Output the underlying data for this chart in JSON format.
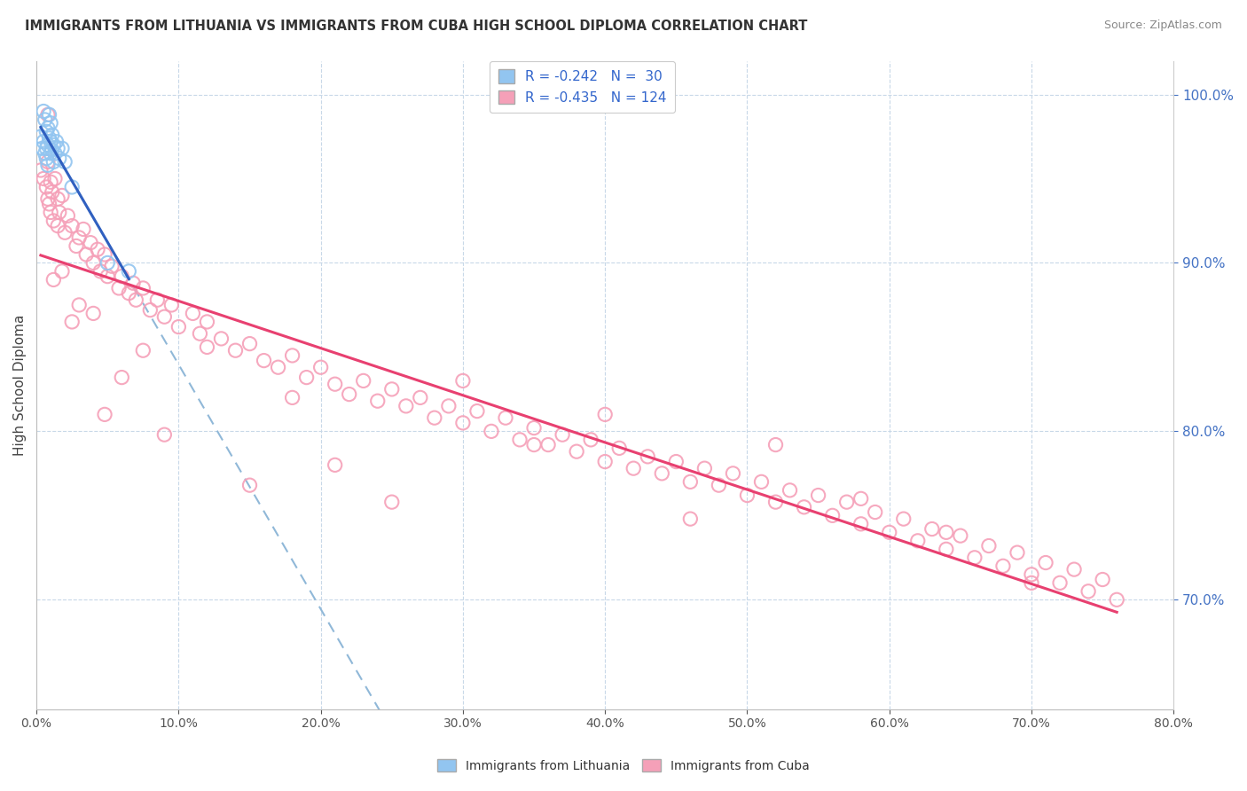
{
  "title": "IMMIGRANTS FROM LITHUANIA VS IMMIGRANTS FROM CUBA HIGH SCHOOL DIPLOMA CORRELATION CHART",
  "source": "Source: ZipAtlas.com",
  "ylabel": "High School Diploma",
  "bottom_legend": [
    "Immigrants from Lithuania",
    "Immigrants from Cuba"
  ],
  "lithuania_color": "#92c5f0",
  "cuba_color": "#f5a0b8",
  "trend_lithuania_color": "#3060c0",
  "trend_cuba_color": "#e84070",
  "trend_dashed_color": "#90b8d8",
  "background_color": "#ffffff",
  "legend_text_color": "#3366cc",
  "xlim": [
    0.0,
    0.8
  ],
  "ylim": [
    0.635,
    1.02
  ],
  "right_yticks": [
    0.7,
    0.8,
    0.9,
    1.0
  ],
  "lithuania_x": [
    0.003,
    0.004,
    0.005,
    0.005,
    0.006,
    0.006,
    0.007,
    0.007,
    0.007,
    0.008,
    0.008,
    0.008,
    0.009,
    0.009,
    0.01,
    0.01,
    0.01,
    0.011,
    0.011,
    0.012,
    0.012,
    0.013,
    0.014,
    0.015,
    0.016,
    0.018,
    0.02,
    0.025,
    0.05,
    0.065
  ],
  "lithuania_y": [
    0.975,
    0.968,
    0.99,
    0.972,
    0.965,
    0.985,
    0.968,
    0.978,
    0.962,
    0.98,
    0.97,
    0.958,
    0.974,
    0.988,
    0.965,
    0.972,
    0.983,
    0.967,
    0.976,
    0.96,
    0.97,
    0.965,
    0.972,
    0.968,
    0.962,
    0.968,
    0.96,
    0.945,
    0.9,
    0.895
  ],
  "cuba_x": [
    0.003,
    0.005,
    0.007,
    0.008,
    0.008,
    0.009,
    0.01,
    0.01,
    0.011,
    0.012,
    0.013,
    0.015,
    0.015,
    0.016,
    0.018,
    0.02,
    0.022,
    0.025,
    0.028,
    0.03,
    0.033,
    0.035,
    0.038,
    0.04,
    0.043,
    0.045,
    0.048,
    0.05,
    0.053,
    0.058,
    0.06,
    0.065,
    0.068,
    0.07,
    0.075,
    0.08,
    0.085,
    0.09,
    0.095,
    0.1,
    0.11,
    0.115,
    0.12,
    0.13,
    0.14,
    0.15,
    0.16,
    0.17,
    0.18,
    0.19,
    0.2,
    0.21,
    0.22,
    0.23,
    0.24,
    0.25,
    0.26,
    0.27,
    0.28,
    0.29,
    0.3,
    0.31,
    0.32,
    0.33,
    0.34,
    0.35,
    0.36,
    0.37,
    0.38,
    0.39,
    0.4,
    0.41,
    0.42,
    0.43,
    0.44,
    0.45,
    0.46,
    0.47,
    0.48,
    0.49,
    0.5,
    0.51,
    0.52,
    0.53,
    0.54,
    0.55,
    0.56,
    0.57,
    0.58,
    0.59,
    0.6,
    0.61,
    0.62,
    0.63,
    0.64,
    0.65,
    0.66,
    0.67,
    0.68,
    0.69,
    0.7,
    0.71,
    0.72,
    0.73,
    0.74,
    0.75,
    0.76,
    0.008,
    0.012,
    0.018,
    0.025,
    0.03,
    0.04,
    0.048,
    0.06,
    0.075,
    0.09,
    0.12,
    0.15,
    0.18,
    0.21,
    0.25,
    0.3,
    0.35,
    0.4,
    0.46,
    0.52,
    0.58,
    0.64,
    0.7
  ],
  "cuba_y": [
    0.955,
    0.95,
    0.945,
    0.938,
    0.96,
    0.935,
    0.948,
    0.93,
    0.942,
    0.925,
    0.95,
    0.938,
    0.922,
    0.93,
    0.94,
    0.918,
    0.928,
    0.922,
    0.91,
    0.915,
    0.92,
    0.905,
    0.912,
    0.9,
    0.908,
    0.895,
    0.905,
    0.892,
    0.898,
    0.885,
    0.892,
    0.882,
    0.888,
    0.878,
    0.885,
    0.872,
    0.878,
    0.868,
    0.875,
    0.862,
    0.87,
    0.858,
    0.865,
    0.855,
    0.848,
    0.852,
    0.842,
    0.838,
    0.845,
    0.832,
    0.838,
    0.828,
    0.822,
    0.83,
    0.818,
    0.825,
    0.815,
    0.82,
    0.808,
    0.815,
    0.805,
    0.812,
    0.8,
    0.808,
    0.795,
    0.802,
    0.792,
    0.798,
    0.788,
    0.795,
    0.782,
    0.79,
    0.778,
    0.785,
    0.775,
    0.782,
    0.77,
    0.778,
    0.768,
    0.775,
    0.762,
    0.77,
    0.758,
    0.765,
    0.755,
    0.762,
    0.75,
    0.758,
    0.745,
    0.752,
    0.74,
    0.748,
    0.735,
    0.742,
    0.73,
    0.738,
    0.725,
    0.732,
    0.72,
    0.728,
    0.715,
    0.722,
    0.71,
    0.718,
    0.705,
    0.712,
    0.7,
    0.988,
    0.89,
    0.895,
    0.865,
    0.875,
    0.87,
    0.81,
    0.832,
    0.848,
    0.798,
    0.85,
    0.768,
    0.82,
    0.78,
    0.758,
    0.83,
    0.792,
    0.81,
    0.748,
    0.792,
    0.76,
    0.74,
    0.71
  ]
}
